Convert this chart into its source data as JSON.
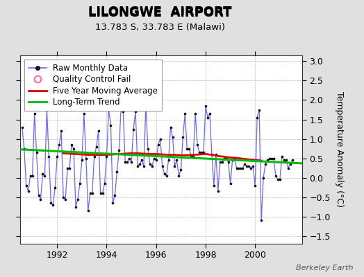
{
  "title": "LILONGWE  AIRPORT",
  "subtitle": "13.783 S, 33.783 E (Malawi)",
  "ylabel": "Temperature Anomaly (°C)",
  "watermark": "Berkeley Earth",
  "ylim": [
    -1.7,
    3.15
  ],
  "xlim": [
    1990.5,
    2001.9
  ],
  "yticks": [
    -1.5,
    -1.0,
    -0.5,
    0.0,
    0.5,
    1.0,
    1.5,
    2.0,
    2.5,
    3.0
  ],
  "xticks": [
    1992,
    1994,
    1996,
    1998,
    2000
  ],
  "bg_color": "#e0e0e0",
  "plot_bg_color": "#ffffff",
  "raw_color": "#6666ff",
  "raw_marker_color": "#111111",
  "moving_avg_color": "#dd0000",
  "trend_color": "#00bb00",
  "qc_color": "#ff69b4",
  "legend_fontsize": 8.5,
  "title_fontsize": 13,
  "subtitle_fontsize": 9.5,
  "raw_data_x": [
    1990.583,
    1990.667,
    1990.75,
    1990.833,
    1990.917,
    1991.0,
    1991.083,
    1991.167,
    1991.25,
    1991.333,
    1991.417,
    1991.5,
    1991.583,
    1991.667,
    1991.75,
    1991.833,
    1991.917,
    1992.0,
    1992.083,
    1992.167,
    1992.25,
    1992.333,
    1992.417,
    1992.5,
    1992.583,
    1992.667,
    1992.75,
    1992.833,
    1992.917,
    1993.0,
    1993.083,
    1993.167,
    1993.25,
    1993.333,
    1993.417,
    1993.5,
    1993.583,
    1993.667,
    1993.75,
    1993.833,
    1993.917,
    1994.0,
    1994.083,
    1994.167,
    1994.25,
    1994.333,
    1994.417,
    1994.5,
    1994.583,
    1994.667,
    1994.75,
    1994.833,
    1994.917,
    1995.0,
    1995.083,
    1995.167,
    1995.25,
    1995.333,
    1995.417,
    1995.5,
    1995.583,
    1995.667,
    1995.75,
    1995.833,
    1995.917,
    1996.0,
    1996.083,
    1996.167,
    1996.25,
    1996.333,
    1996.417,
    1996.5,
    1996.583,
    1996.667,
    1996.75,
    1996.833,
    1996.917,
    1997.0,
    1997.083,
    1997.167,
    1997.25,
    1997.333,
    1997.417,
    1997.5,
    1997.583,
    1997.667,
    1997.75,
    1997.833,
    1997.917,
    1998.0,
    1998.083,
    1998.167,
    1998.25,
    1998.333,
    1998.417,
    1998.5,
    1998.583,
    1998.667,
    1998.75,
    1998.833,
    1998.917,
    1999.0,
    1999.083,
    1999.167,
    1999.25,
    1999.333,
    1999.417,
    1999.5,
    1999.583,
    1999.667,
    1999.75,
    1999.833,
    1999.917,
    2000.0,
    2000.083,
    2000.167,
    2000.25,
    2000.333,
    2000.417,
    2000.5,
    2000.583,
    2000.667,
    2000.75,
    2000.833,
    2000.917,
    2001.0,
    2001.083,
    2001.167,
    2001.25,
    2001.333,
    2001.417,
    2001.5
  ],
  "raw_data_y": [
    1.3,
    0.75,
    -0.2,
    -0.35,
    0.05,
    0.05,
    1.65,
    0.65,
    -0.45,
    -0.55,
    0.1,
    0.05,
    1.75,
    0.55,
    -0.65,
    -0.7,
    -0.25,
    0.55,
    0.85,
    1.2,
    -0.5,
    -0.55,
    0.25,
    0.25,
    0.85,
    0.75,
    -0.75,
    -0.55,
    -0.15,
    0.45,
    1.65,
    0.5,
    -0.85,
    -0.4,
    -0.4,
    0.55,
    0.8,
    1.2,
    -0.4,
    -0.4,
    -0.15,
    0.55,
    1.75,
    1.35,
    -0.65,
    -0.45,
    0.15,
    0.7,
    1.85,
    1.7,
    0.4,
    0.4,
    0.5,
    0.4,
    1.25,
    1.7,
    0.3,
    0.35,
    0.45,
    0.3,
    1.85,
    0.75,
    0.35,
    0.3,
    0.5,
    0.45,
    0.85,
    1.0,
    0.3,
    0.1,
    0.05,
    0.45,
    1.3,
    1.05,
    0.3,
    0.45,
    0.05,
    0.2,
    1.05,
    1.65,
    0.75,
    0.75,
    0.55,
    0.55,
    1.65,
    0.85,
    0.65,
    0.65,
    0.65,
    1.85,
    1.55,
    1.65,
    0.6,
    -0.2,
    0.6,
    -0.35,
    0.4,
    0.4,
    0.5,
    0.5,
    0.4,
    -0.15,
    0.45,
    0.5,
    0.25,
    0.25,
    0.25,
    0.25,
    0.35,
    0.3,
    0.3,
    0.25,
    0.3,
    -0.2,
    1.55,
    1.75,
    -1.1,
    0.0,
    0.35,
    0.45,
    0.5,
    0.5,
    0.5,
    0.05,
    -0.05,
    -0.05,
    0.55,
    0.45,
    0.45,
    0.25,
    0.35,
    0.45
  ],
  "moving_avg_x": [
    1992.25,
    1992.5,
    1992.75,
    1993.0,
    1993.25,
    1993.5,
    1993.75,
    1994.0,
    1994.25,
    1994.5,
    1994.75,
    1995.0,
    1995.25,
    1995.5,
    1995.75,
    1996.0,
    1996.25,
    1996.5,
    1996.75,
    1997.0,
    1997.25,
    1997.5,
    1997.75,
    1998.0,
    1998.25,
    1998.5,
    1998.75,
    1999.0,
    1999.25,
    1999.5,
    1999.75,
    2000.0,
    2000.25
  ],
  "moving_avg_y": [
    0.63,
    0.62,
    0.61,
    0.6,
    0.59,
    0.59,
    0.59,
    0.59,
    0.6,
    0.61,
    0.62,
    0.63,
    0.63,
    0.62,
    0.61,
    0.61,
    0.6,
    0.59,
    0.59,
    0.58,
    0.58,
    0.59,
    0.6,
    0.61,
    0.59,
    0.56,
    0.54,
    0.52,
    0.51,
    0.49,
    0.47,
    0.46,
    0.44
  ],
  "trend_x": [
    1990.5,
    2001.9
  ],
  "trend_y": [
    0.73,
    0.37
  ]
}
